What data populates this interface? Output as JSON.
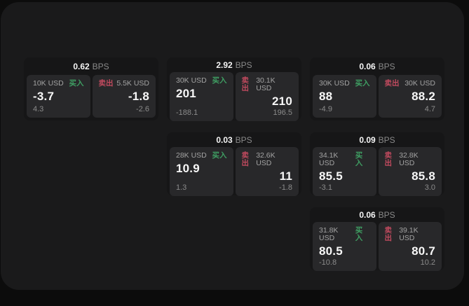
{
  "labels": {
    "buy": "买入",
    "sell": "卖出",
    "bps_suffix": "BPS"
  },
  "colors": {
    "page_bg": "#0c0c0c",
    "surface_bg": "#1a1a1b",
    "card_bg": "#161617",
    "tile_bg": "#28282a",
    "buy_green": "#3f9f63",
    "sell_red": "#c04a5e",
    "primary_text": "#f5f5f5",
    "muted_text": "#8b8b8b"
  },
  "cards": [
    {
      "bps": "0.62",
      "buy": {
        "amount": "10K USD",
        "price": "-3.7",
        "delta": "4.3"
      },
      "sell": {
        "amount": "5.5K USD",
        "price": "-1.8",
        "delta": "-2.6"
      }
    },
    {
      "bps": "2.92",
      "buy": {
        "amount": "30K USD",
        "price": "201",
        "delta": "-188.1"
      },
      "sell": {
        "amount": "30.1K USD",
        "price": "210",
        "delta": "196.5"
      }
    },
    {
      "bps": "0.06",
      "buy": {
        "amount": "30K USD",
        "price": "88",
        "delta": "-4.9"
      },
      "sell": {
        "amount": "30K USD",
        "price": "88.2",
        "delta": "4.7"
      }
    },
    {
      "bps": "0.03",
      "buy": {
        "amount": "28K USD",
        "price": "10.9",
        "delta": "1.3"
      },
      "sell": {
        "amount": "32.6K USD",
        "price": "11",
        "delta": "-1.8"
      }
    },
    {
      "bps": "0.09",
      "buy": {
        "amount": "34.1K USD",
        "price": "85.5",
        "delta": "-3.1"
      },
      "sell": {
        "amount": "32.8K USD",
        "price": "85.8",
        "delta": "3.0"
      }
    },
    {
      "bps": "0.06",
      "buy": {
        "amount": "31.8K USD",
        "price": "80.5",
        "delta": "-10.8"
      },
      "sell": {
        "amount": "39.1K USD",
        "price": "80.7",
        "delta": "10.2"
      }
    }
  ]
}
